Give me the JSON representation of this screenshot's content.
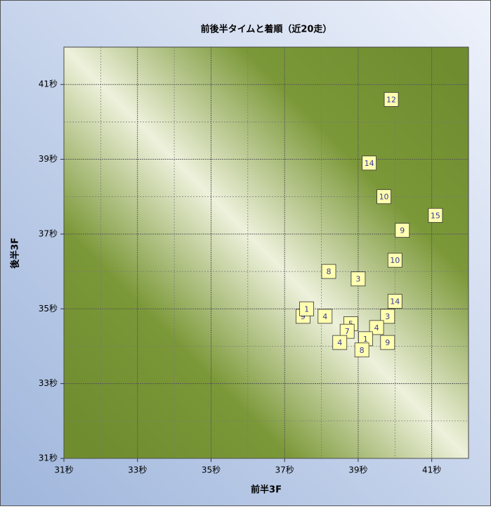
{
  "chart_data": {
    "type": "scatter",
    "title": "前後半タイムと着順（近20走）",
    "x_label": "前半3F",
    "y_label": "後半3F",
    "x": [
      39.9,
      39.3,
      39.7,
      41.1,
      40.2,
      40.0,
      38.2,
      39.0,
      40.0,
      37.5,
      37.6,
      38.1,
      39.8,
      38.8,
      38.7,
      39.5,
      39.2,
      38.5,
      39.8,
      39.1
    ],
    "y": [
      40.6,
      38.9,
      38.0,
      37.5,
      37.1,
      36.3,
      36.0,
      35.8,
      35.2,
      34.8,
      35.0,
      34.8,
      34.8,
      34.6,
      34.4,
      34.5,
      34.2,
      34.1,
      34.1,
      33.9
    ],
    "labels": [
      12,
      14,
      10,
      15,
      9,
      10,
      8,
      3,
      14,
      9,
      1,
      4,
      3,
      5,
      7,
      4,
      1,
      4,
      9,
      8
    ],
    "color": "#ffffb0",
    "xlim": [
      31,
      42
    ],
    "ylim": [
      31,
      42
    ],
    "xticks": [
      {
        "value": 31,
        "label": "31秒"
      },
      {
        "value": 33,
        "label": "33秒"
      },
      {
        "value": 35,
        "label": "35秒"
      },
      {
        "value": 37,
        "label": "37秒"
      },
      {
        "value": 39,
        "label": "39秒"
      },
      {
        "value": 41,
        "label": "41秒"
      }
    ],
    "yticks": [
      {
        "value": 31,
        "label": "31秒"
      },
      {
        "value": 33,
        "label": "33秒"
      },
      {
        "value": 35,
        "label": "35秒"
      },
      {
        "value": 37,
        "label": "37秒"
      },
      {
        "value": 39,
        "label": "39秒"
      },
      {
        "value": 41,
        "label": "41秒"
      }
    ],
    "x_minor_grid": [
      32,
      34,
      36,
      38,
      40
    ],
    "y_minor_grid": [
      32,
      34,
      36,
      38,
      40
    ],
    "grid": true
  }
}
